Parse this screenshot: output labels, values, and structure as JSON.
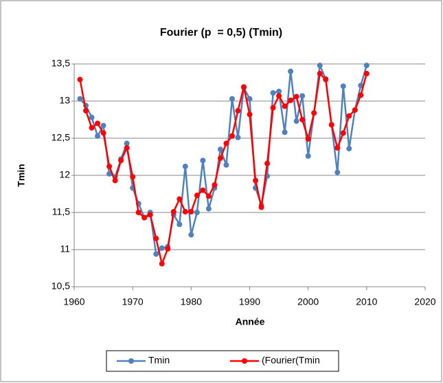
{
  "chart_data": {
    "type": "line",
    "title": "Fourier (p  = 0,5) (Tmin)",
    "x_label": "Année",
    "y_label": "Tmin",
    "x": [
      1961,
      1962,
      1963,
      1964,
      1965,
      1966,
      1967,
      1968,
      1969,
      1970,
      1971,
      1972,
      1973,
      1974,
      1975,
      1976,
      1977,
      1978,
      1979,
      1980,
      1981,
      1982,
      1983,
      1984,
      1985,
      1986,
      1987,
      1988,
      1989,
      1990,
      1991,
      1992,
      1993,
      1994,
      1995,
      1996,
      1997,
      1998,
      1999,
      2000,
      2001,
      2002,
      2003,
      2004,
      2005,
      2006,
      2007,
      2008,
      2009,
      2010
    ],
    "series": [
      {
        "name": "Tmin",
        "color": "#4f81bd",
        "values": [
          13.03,
          12.94,
          12.78,
          12.53,
          12.67,
          12.02,
          11.98,
          12.22,
          12.43,
          11.83,
          11.62,
          11.43,
          11.5,
          10.94,
          11.02,
          11.04,
          11.47,
          11.34,
          12.12,
          11.2,
          11.5,
          12.2,
          11.55,
          11.83,
          12.35,
          12.14,
          13.03,
          12.51,
          13.18,
          13.03,
          11.83,
          11.6,
          11.99,
          13.11,
          13.13,
          12.58,
          13.4,
          12.73,
          13.07,
          12.26,
          12.84,
          13.48,
          13.3,
          12.68,
          12.04,
          13.2,
          12.36,
          12.88,
          13.21,
          13.48
        ]
      },
      {
        "name": "(Fourier(Tmin",
        "color": "#ff0000",
        "values": [
          13.29,
          12.87,
          12.64,
          12.7,
          12.57,
          12.12,
          11.93,
          12.2,
          12.37,
          11.98,
          11.5,
          11.43,
          11.47,
          11.15,
          10.81,
          11.01,
          11.51,
          11.68,
          11.51,
          11.51,
          11.73,
          11.8,
          11.72,
          11.87,
          12.23,
          12.43,
          12.53,
          12.87,
          13.19,
          12.82,
          11.93,
          11.57,
          12.16,
          12.91,
          13.07,
          12.93,
          13.01,
          13.06,
          12.75,
          12.49,
          12.84,
          13.37,
          13.29,
          12.68,
          12.37,
          12.57,
          12.8,
          12.88,
          13.08,
          13.37
        ]
      }
    ],
    "xlim": [
      1960,
      2020
    ],
    "xticks": [
      1960,
      1970,
      1980,
      1990,
      2000,
      2010,
      2020
    ],
    "ylim": [
      10.5,
      13.5
    ],
    "yticks": [
      {
        "value": 10.5,
        "label": "10,5"
      },
      11,
      {
        "value": 11.5,
        "label": "11,5"
      },
      12,
      {
        "value": 12.5,
        "label": "12,5"
      },
      13,
      {
        "value": 13.5,
        "label": "13,5"
      }
    ],
    "grid": true,
    "legend": "bottom"
  }
}
